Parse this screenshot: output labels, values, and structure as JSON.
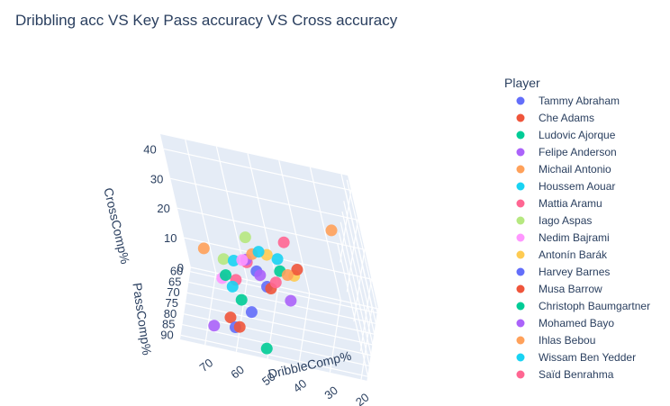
{
  "chart_data": {
    "type": "scatter3d",
    "title": "Dribbling acc VS Key Pass accuracy VS Cross accuracy",
    "axes": {
      "x": {
        "label": "DribbleComp%",
        "ticks": [
          "20",
          "30",
          "40",
          "50",
          "60",
          "70"
        ],
        "range": [
          18,
          78
        ]
      },
      "y": {
        "label": "PassComp%",
        "ticks": [
          "60",
          "65",
          "70",
          "75",
          "80",
          "85",
          "90"
        ],
        "range": [
          58,
          92
        ]
      },
      "z": {
        "label": "CrossComp%",
        "ticks": [
          "0",
          "10",
          "20",
          "30",
          "40"
        ],
        "range": [
          0,
          45
        ]
      }
    },
    "legend": {
      "title": "Player",
      "placement": "right"
    },
    "series": [
      {
        "name": "Tammy Abraham",
        "color": "#636efa",
        "points": [
          [
            50,
            72,
            10
          ],
          [
            55,
            80,
            6
          ]
        ]
      },
      {
        "name": "Che Adams",
        "color": "#EF553B",
        "points": [
          [
            48,
            75,
            12
          ],
          [
            62,
            82,
            4
          ]
        ]
      },
      {
        "name": "Ludovic Ajorque",
        "color": "#00cc96",
        "points": [
          [
            45,
            70,
            15
          ],
          [
            58,
            78,
            8
          ]
        ]
      },
      {
        "name": "Felipe Anderson",
        "color": "#ab63fa",
        "points": [
          [
            55,
            72,
            18
          ],
          [
            42,
            76,
            10
          ]
        ]
      },
      {
        "name": "Michail Antonio",
        "color": "#FFA15A",
        "points": [
          [
            25,
            68,
            32
          ],
          [
            52,
            74,
            22
          ]
        ]
      },
      {
        "name": "Houssem Aouar",
        "color": "#19d3f3",
        "points": [
          [
            48,
            80,
            28
          ],
          [
            60,
            78,
            12
          ]
        ]
      },
      {
        "name": "Mattia Aramu",
        "color": "#FF6692",
        "points": [
          [
            44,
            82,
            20
          ],
          [
            56,
            68,
            14
          ]
        ]
      },
      {
        "name": "Iago Aspas",
        "color": "#B6E880",
        "points": [
          [
            50,
            85,
            36
          ],
          [
            62,
            74,
            18
          ]
        ]
      },
      {
        "name": "Nedim Bajrami",
        "color": "#FF97FF",
        "points": [
          [
            52,
            88,
            30
          ],
          [
            65,
            70,
            8
          ]
        ]
      },
      {
        "name": "Antonín Barák",
        "color": "#FECB52",
        "points": [
          [
            46,
            78,
            26
          ],
          [
            40,
            72,
            16
          ]
        ]
      },
      {
        "name": "Harvey Barnes",
        "color": "#636efa",
        "points": [
          [
            54,
            66,
            10
          ],
          [
            60,
            86,
            4
          ]
        ]
      },
      {
        "name": "Musa Barrow",
        "color": "#EF553B",
        "points": [
          [
            38,
            74,
            20
          ],
          [
            58,
            88,
            6
          ]
        ]
      },
      {
        "name": "Christoph Baumgartner",
        "color": "#00cc96",
        "points": [
          [
            62,
            76,
            14
          ],
          [
            50,
            90,
            2
          ]
        ]
      },
      {
        "name": "Mohamed Bayo",
        "color": "#ab63fa",
        "points": [
          [
            66,
            90,
            6
          ],
          [
            52,
            70,
            12
          ]
        ]
      },
      {
        "name": "Ihlas Bebou",
        "color": "#FFA15A",
        "points": [
          [
            70,
            66,
            14
          ],
          [
            40,
            80,
            22
          ]
        ]
      },
      {
        "name": "Wissam Ben Yedder",
        "color": "#19d3f3",
        "points": [
          [
            56,
            84,
            26
          ],
          [
            46,
            66,
            16
          ]
        ]
      },
      {
        "name": "Saïd Benrahma",
        "color": "#FF6692",
        "points": [
          [
            42,
            68,
            24
          ],
          [
            60,
            72,
            10
          ]
        ]
      }
    ]
  }
}
